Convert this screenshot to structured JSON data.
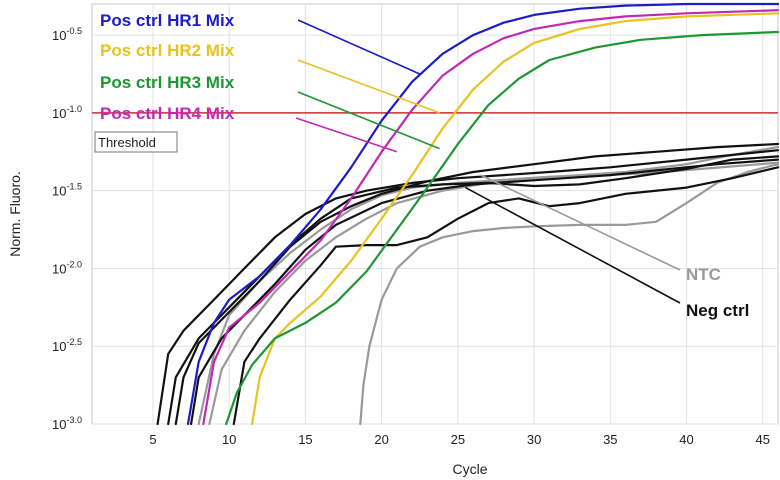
{
  "chart_data": {
    "type": "line",
    "title": "",
    "xlabel": "Cycle",
    "ylabel": "Norm. Fluoro.",
    "xlim": [
      1,
      46
    ],
    "ylim_log10": [
      -3.0,
      -0.3
    ],
    "y_scale": "log10",
    "grid": true,
    "x_ticks": [
      5,
      10,
      15,
      20,
      25,
      30,
      35,
      40,
      45
    ],
    "y_ticks": [
      {
        "exp": -3.0,
        "mantissa": "10",
        "sup": "-3.0"
      },
      {
        "exp": -2.5,
        "mantissa": "10",
        "sup": "-2.5"
      },
      {
        "exp": -2.0,
        "mantissa": "10",
        "sup": "-2.0"
      },
      {
        "exp": -1.5,
        "mantissa": "10",
        "sup": "-1.5"
      },
      {
        "exp": -1.0,
        "mantissa": "10",
        "sup": "-1.0"
      },
      {
        "exp": -0.5,
        "mantissa": "10",
        "sup": "-0.5"
      }
    ],
    "threshold": {
      "label": "Threshold",
      "log10": -1.0,
      "color": "#c83232"
    },
    "series": [
      {
        "name": "Pos ctrl HR1 Mix",
        "color": "#1c1cc8",
        "points": [
          [
            7.3,
            -3.0
          ],
          [
            8,
            -2.6
          ],
          [
            9,
            -2.35
          ],
          [
            10,
            -2.2
          ],
          [
            12,
            -2.05
          ],
          [
            14,
            -1.85
          ],
          [
            16,
            -1.62
          ],
          [
            18,
            -1.35
          ],
          [
            20,
            -1.05
          ],
          [
            22,
            -0.8
          ],
          [
            24,
            -0.62
          ],
          [
            26,
            -0.5
          ],
          [
            28,
            -0.42
          ],
          [
            30,
            -0.37
          ],
          [
            33,
            -0.33
          ],
          [
            36,
            -0.31
          ],
          [
            40,
            -0.3
          ],
          [
            46,
            -0.3
          ]
        ]
      },
      {
        "name": "Pos ctrl HR2 Mix",
        "color": "#e6c31e",
        "points": [
          [
            11.5,
            -3.0
          ],
          [
            12,
            -2.7
          ],
          [
            13,
            -2.45
          ],
          [
            14,
            -2.35
          ],
          [
            16,
            -2.18
          ],
          [
            18,
            -1.95
          ],
          [
            20,
            -1.68
          ],
          [
            22,
            -1.4
          ],
          [
            24,
            -1.1
          ],
          [
            26,
            -0.85
          ],
          [
            28,
            -0.67
          ],
          [
            30,
            -0.55
          ],
          [
            33,
            -0.46
          ],
          [
            36,
            -0.41
          ],
          [
            40,
            -0.38
          ],
          [
            46,
            -0.36
          ]
        ]
      },
      {
        "name": "Pos ctrl HR3 Mix",
        "color": "#1e9632",
        "points": [
          [
            9.8,
            -3.0
          ],
          [
            10.5,
            -2.8
          ],
          [
            11.5,
            -2.62
          ],
          [
            13,
            -2.45
          ],
          [
            15,
            -2.35
          ],
          [
            17,
            -2.22
          ],
          [
            19,
            -2.02
          ],
          [
            21,
            -1.75
          ],
          [
            23,
            -1.48
          ],
          [
            25,
            -1.2
          ],
          [
            27,
            -0.95
          ],
          [
            29,
            -0.78
          ],
          [
            31,
            -0.66
          ],
          [
            34,
            -0.58
          ],
          [
            37,
            -0.53
          ],
          [
            41,
            -0.5
          ],
          [
            46,
            -0.48
          ]
        ]
      },
      {
        "name": "Pos ctrl HR4 Mix",
        "color": "#c328b4",
        "points": [
          [
            8.3,
            -3.0
          ],
          [
            9,
            -2.6
          ],
          [
            10,
            -2.38
          ],
          [
            12,
            -2.22
          ],
          [
            14,
            -2.02
          ],
          [
            16,
            -1.82
          ],
          [
            18,
            -1.55
          ],
          [
            20,
            -1.25
          ],
          [
            22,
            -0.98
          ],
          [
            24,
            -0.76
          ],
          [
            26,
            -0.62
          ],
          [
            28,
            -0.52
          ],
          [
            30,
            -0.46
          ],
          [
            33,
            -0.41
          ],
          [
            36,
            -0.38
          ],
          [
            40,
            -0.36
          ],
          [
            46,
            -0.34
          ]
        ]
      },
      {
        "name": "",
        "color": "#111111",
        "points": [
          [
            5.3,
            -3.0
          ],
          [
            6,
            -2.55
          ],
          [
            7,
            -2.4
          ],
          [
            9,
            -2.2
          ],
          [
            11,
            -2.0
          ],
          [
            13,
            -1.8
          ],
          [
            15,
            -1.65
          ],
          [
            17,
            -1.55
          ],
          [
            19,
            -1.5
          ],
          [
            22,
            -1.45
          ],
          [
            25,
            -1.42
          ],
          [
            28,
            -1.4
          ],
          [
            31,
            -1.38
          ],
          [
            35,
            -1.35
          ],
          [
            40,
            -1.3
          ],
          [
            46,
            -1.24
          ]
        ]
      },
      {
        "name": "",
        "color": "#111111",
        "points": [
          [
            6.5,
            -3.0
          ],
          [
            7,
            -2.7
          ],
          [
            8,
            -2.48
          ],
          [
            10,
            -2.28
          ],
          [
            12,
            -2.08
          ],
          [
            14,
            -1.86
          ],
          [
            16,
            -1.7
          ],
          [
            18,
            -1.6
          ],
          [
            20,
            -1.52
          ],
          [
            23,
            -1.44
          ],
          [
            26,
            -1.38
          ],
          [
            30,
            -1.33
          ],
          [
            34,
            -1.28
          ],
          [
            38,
            -1.25
          ],
          [
            42,
            -1.22
          ],
          [
            46,
            -1.2
          ]
        ]
      },
      {
        "name": "",
        "color": "#111111",
        "points": [
          [
            10.3,
            -3.0
          ],
          [
            11,
            -2.6
          ],
          [
            12,
            -2.45
          ],
          [
            14,
            -2.2
          ],
          [
            16,
            -1.98
          ],
          [
            17,
            -1.86
          ],
          [
            19,
            -1.85
          ],
          [
            21,
            -1.85
          ],
          [
            23,
            -1.8
          ],
          [
            25,
            -1.68
          ],
          [
            27,
            -1.58
          ],
          [
            29,
            -1.55
          ],
          [
            31,
            -1.6
          ],
          [
            33,
            -1.58
          ],
          [
            36,
            -1.52
          ],
          [
            40,
            -1.48
          ],
          [
            43,
            -1.42
          ],
          [
            46,
            -1.35
          ]
        ]
      },
      {
        "name": "",
        "color": "#111111",
        "points": [
          [
            6,
            -3.0
          ],
          [
            6.5,
            -2.7
          ],
          [
            8,
            -2.45
          ],
          [
            10,
            -2.25
          ],
          [
            12,
            -2.05
          ],
          [
            14,
            -1.85
          ],
          [
            16,
            -1.68
          ],
          [
            18,
            -1.55
          ],
          [
            21,
            -1.48
          ],
          [
            24,
            -1.46
          ],
          [
            27,
            -1.45
          ],
          [
            30,
            -1.47
          ],
          [
            33,
            -1.46
          ],
          [
            36,
            -1.42
          ],
          [
            40,
            -1.36
          ],
          [
            43,
            -1.3
          ],
          [
            46,
            -1.28
          ]
        ]
      },
      {
        "name": "",
        "color": "#111111",
        "points": [
          [
            7.5,
            -3.0
          ],
          [
            8,
            -2.7
          ],
          [
            9.5,
            -2.45
          ],
          [
            11,
            -2.3
          ],
          [
            13,
            -2.1
          ],
          [
            15,
            -1.88
          ],
          [
            17,
            -1.72
          ],
          [
            20,
            -1.58
          ],
          [
            23,
            -1.5
          ],
          [
            26,
            -1.46
          ],
          [
            29,
            -1.44
          ],
          [
            32,
            -1.42
          ],
          [
            35,
            -1.4
          ],
          [
            38,
            -1.37
          ],
          [
            42,
            -1.33
          ],
          [
            46,
            -1.3
          ]
        ]
      },
      {
        "name": "",
        "color": "#9a9a9a",
        "points": [
          [
            8,
            -3.0
          ],
          [
            9,
            -2.55
          ],
          [
            10,
            -2.3
          ],
          [
            12,
            -2.08
          ],
          [
            14,
            -1.9
          ],
          [
            16,
            -1.75
          ],
          [
            18,
            -1.62
          ],
          [
            20,
            -1.53
          ],
          [
            22,
            -1.48
          ],
          [
            25,
            -1.45
          ],
          [
            28,
            -1.43
          ],
          [
            31,
            -1.41
          ],
          [
            34,
            -1.4
          ],
          [
            37,
            -1.39
          ],
          [
            41,
            -1.36
          ],
          [
            46,
            -1.32
          ]
        ]
      },
      {
        "name": "",
        "color": "#9a9a9a",
        "points": [
          [
            8.7,
            -3.0
          ],
          [
            9.5,
            -2.65
          ],
          [
            11,
            -2.4
          ],
          [
            13,
            -2.15
          ],
          [
            15,
            -1.95
          ],
          [
            17,
            -1.8
          ],
          [
            19,
            -1.68
          ],
          [
            21,
            -1.58
          ],
          [
            24,
            -1.5
          ],
          [
            27,
            -1.45
          ],
          [
            30,
            -1.42
          ],
          [
            33,
            -1.4
          ],
          [
            36,
            -1.38
          ],
          [
            40,
            -1.33
          ],
          [
            43,
            -1.27
          ],
          [
            46,
            -1.22
          ]
        ]
      },
      {
        "name": "",
        "color": "#9a9a9a",
        "points": [
          [
            18.6,
            -3.0
          ],
          [
            18.8,
            -2.75
          ],
          [
            19.2,
            -2.5
          ],
          [
            20,
            -2.2
          ],
          [
            21,
            -2.0
          ],
          [
            22.5,
            -1.86
          ],
          [
            24,
            -1.8
          ],
          [
            26,
            -1.76
          ],
          [
            28,
            -1.74
          ],
          [
            30,
            -1.73
          ],
          [
            33,
            -1.72
          ],
          [
            36,
            -1.72
          ],
          [
            38,
            -1.7
          ],
          [
            40,
            -1.58
          ],
          [
            42,
            -1.45
          ],
          [
            44,
            -1.38
          ],
          [
            46,
            -1.33
          ]
        ]
      }
    ],
    "callouts": [
      {
        "text": "Pos ctrl HR1 Mix",
        "color": "#1c1cc8",
        "anchor": [
          22.5,
          -0.75
        ]
      },
      {
        "text": "Pos ctrl HR2 Mix",
        "color": "#e6c31e",
        "anchor": [
          23.8,
          -1.0
        ]
      },
      {
        "text": "Pos ctrl HR3 Mix",
        "color": "#1e9632",
        "anchor": [
          23.8,
          -1.23
        ]
      },
      {
        "text": "Pos ctrl HR4 Mix",
        "color": "#c328b4",
        "anchor": [
          21.0,
          -1.25
        ]
      },
      {
        "text": "NTC",
        "color": "#9a9a9a",
        "anchor": [
          26.5,
          -1.4
        ]
      },
      {
        "text": "Neg ctrl",
        "color": "#111111",
        "anchor": [
          25.5,
          -1.48
        ]
      }
    ]
  }
}
